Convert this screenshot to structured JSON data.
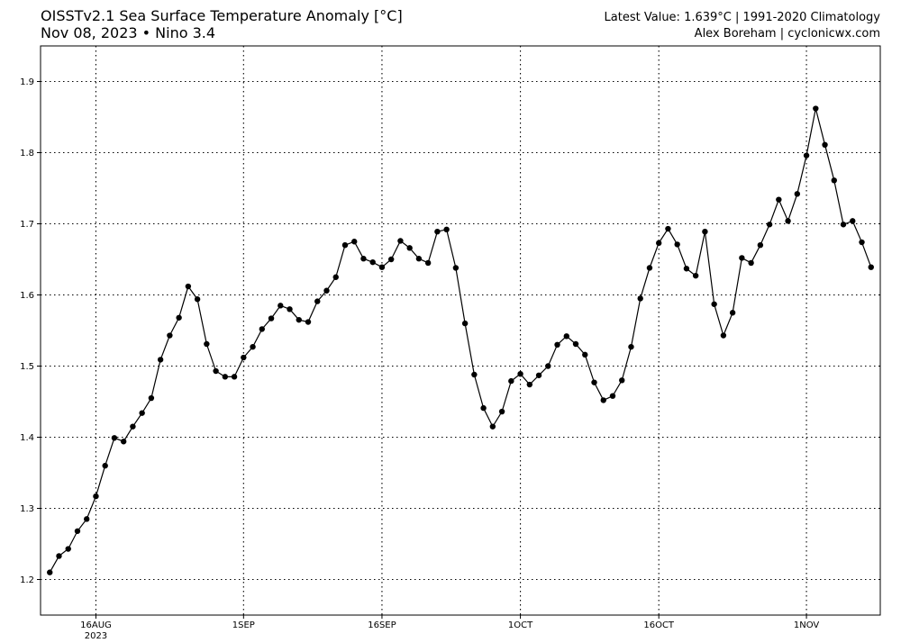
{
  "header": {
    "title_line1": "OISSTv2.1 Sea Surface Temperature Anomaly [°C]",
    "title_line2": "Nov 08, 2023 • Nino 3.4",
    "info_line1": "Latest Value: 1.639°C | 1991-2020 Climatology",
    "info_line2": "Alex Boreham | cyclonicwx.com"
  },
  "chart_data": {
    "type": "line",
    "title": "OISSTv2.1 Sea Surface Temperature Anomaly [°C]",
    "subtitle": "Nov 08, 2023 • Nino 3.4",
    "xlabel": "",
    "ylabel": "",
    "x_start_date": "2023-08-11",
    "x_end_date": "2023-11-08",
    "xlim": [
      "2023-08-10",
      "2023-11-09"
    ],
    "ylim": [
      1.15,
      1.95
    ],
    "y_ticks": [
      1.2,
      1.3,
      1.4,
      1.5,
      1.6,
      1.7,
      1.8,
      1.9
    ],
    "x_ticks": [
      {
        "date": "2023-08-16",
        "label": "16AUG",
        "sublabel": "2023"
      },
      {
        "date": "2023-09-01",
        "label": "1SEP",
        "sublabel": ""
      },
      {
        "date": "2023-09-16",
        "label": "16SEP",
        "sublabel": ""
      },
      {
        "date": "2023-10-01",
        "label": "1OCT",
        "sublabel": ""
      },
      {
        "date": "2023-10-16",
        "label": "16OCT",
        "sublabel": ""
      },
      {
        "date": "2023-11-01",
        "label": "1NOV",
        "sublabel": ""
      }
    ],
    "grid": true,
    "grid_style": "dotted",
    "line_color": "#000000",
    "marker": "circle",
    "series": [
      {
        "values": [
          1.21,
          1.233,
          1.243,
          1.268,
          1.285,
          1.317,
          1.36,
          1.399,
          1.394,
          1.415,
          1.434,
          1.455,
          1.509,
          1.543,
          1.568,
          1.612,
          1.594,
          1.531,
          1.493,
          1.485,
          1.485,
          1.512,
          1.527,
          1.552,
          1.567,
          1.585,
          1.58,
          1.565,
          1.562,
          1.591,
          1.606,
          1.625,
          1.67,
          1.675,
          1.651,
          1.646,
          1.639,
          1.65,
          1.676,
          1.666,
          1.651,
          1.645,
          1.689,
          1.692,
          1.638,
          1.56,
          1.488,
          1.441,
          1.415,
          1.436,
          1.479,
          1.489,
          1.474,
          1.487,
          1.5,
          1.53,
          1.542,
          1.531,
          1.516,
          1.477,
          1.452,
          1.458,
          1.48,
          1.527,
          1.595,
          1.638,
          1.673,
          1.693,
          1.671,
          1.637,
          1.627,
          1.689,
          1.587,
          1.543,
          1.575,
          1.652,
          1.645,
          1.67,
          1.699,
          1.734,
          1.704,
          1.742,
          1.796,
          1.862,
          1.811,
          1.761,
          1.699,
          1.704,
          1.674,
          1.639
        ]
      }
    ]
  }
}
